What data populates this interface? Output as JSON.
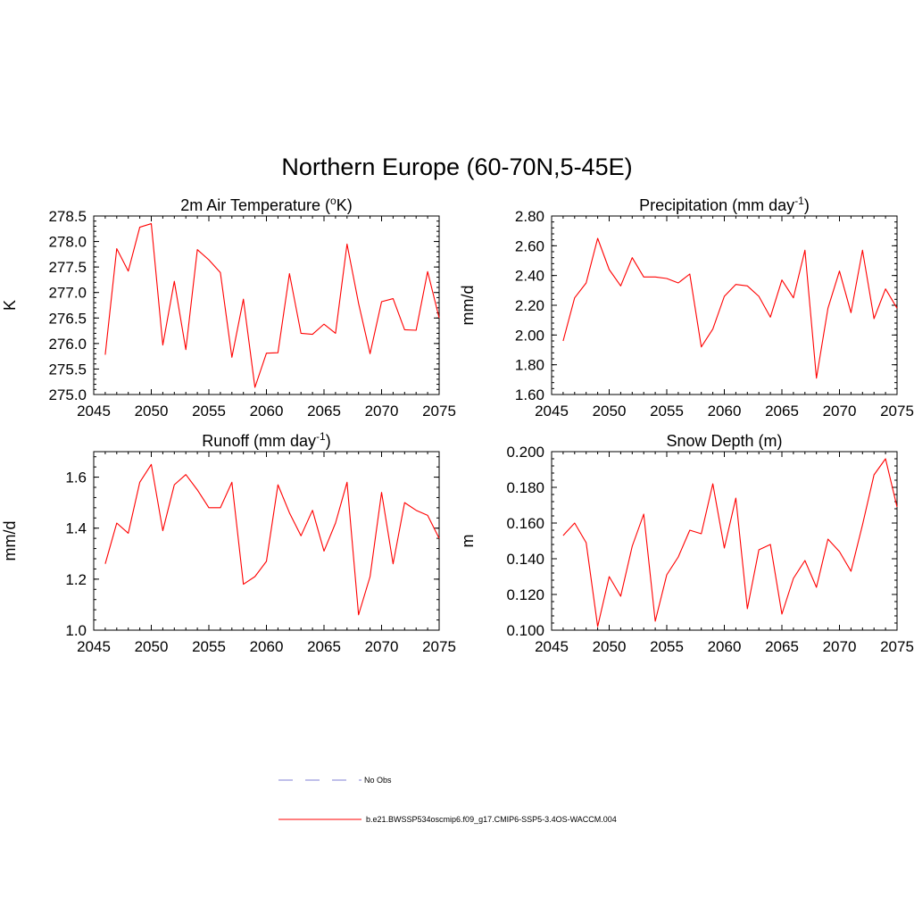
{
  "figure_title": "Northern Europe (60-70N,5-45E)",
  "legend": {
    "obs_label": "No Obs",
    "model_label": "b.e21.BWSSP534oscmip6.f09_g17.CMIP6-SSP5-3.4OS-WACCM.004",
    "obs_color": "#9999dd",
    "model_color": "#ff0000"
  },
  "chart_data": [
    {
      "type": "line",
      "title": "2m Air Temperature (",
      "title_sup": "o",
      "title_suffix": "K)",
      "ylabel": "K",
      "xlim": [
        2045,
        2075
      ],
      "ylim": [
        275.0,
        278.5
      ],
      "xticks": [
        2045,
        2050,
        2055,
        2060,
        2065,
        2070,
        2075
      ],
      "yticks": [
        "275.0",
        "275.5",
        "276.0",
        "276.5",
        "277.0",
        "277.5",
        "278.0",
        "278.5"
      ],
      "x": [
        2046,
        2047,
        2048,
        2049,
        2050,
        2051,
        2052,
        2053,
        2054,
        2055,
        2056,
        2057,
        2058,
        2059,
        2060,
        2061,
        2062,
        2063,
        2064,
        2065,
        2066,
        2067,
        2068,
        2069,
        2070,
        2071,
        2072,
        2073,
        2074,
        2075
      ],
      "series": [
        {
          "values": [
            275.78,
            277.86,
            277.42,
            278.28,
            278.35,
            275.97,
            277.22,
            275.88,
            277.84,
            277.64,
            277.39,
            275.73,
            276.87,
            275.14,
            275.81,
            275.82,
            277.37,
            276.2,
            276.18,
            276.38,
            276.2,
            277.95,
            276.79,
            275.8,
            276.82,
            276.88,
            276.27,
            276.26,
            277.41,
            276.5
          ],
          "color": "#ff0000"
        }
      ]
    },
    {
      "type": "line",
      "title": "Precipitation (mm day",
      "title_sup": "-1",
      "title_suffix": ")",
      "ylabel": "mm/d",
      "xlim": [
        2045,
        2075
      ],
      "ylim": [
        1.6,
        2.8
      ],
      "xticks": [
        2045,
        2050,
        2055,
        2060,
        2065,
        2070,
        2075
      ],
      "yticks": [
        "1.60",
        "1.80",
        "2.00",
        "2.20",
        "2.40",
        "2.60",
        "2.80"
      ],
      "x": [
        2046,
        2047,
        2048,
        2049,
        2050,
        2051,
        2052,
        2053,
        2054,
        2055,
        2056,
        2057,
        2058,
        2059,
        2060,
        2061,
        2062,
        2063,
        2064,
        2065,
        2066,
        2067,
        2068,
        2069,
        2070,
        2071,
        2072,
        2073,
        2074,
        2075
      ],
      "series": [
        {
          "values": [
            1.96,
            2.25,
            2.35,
            2.65,
            2.44,
            2.33,
            2.52,
            2.39,
            2.39,
            2.38,
            2.35,
            2.41,
            1.92,
            2.04,
            2.26,
            2.34,
            2.33,
            2.26,
            2.12,
            2.37,
            2.25,
            2.57,
            1.71,
            2.18,
            2.43,
            2.15,
            2.57,
            2.11,
            2.31,
            2.18
          ],
          "color": "#ff0000"
        }
      ]
    },
    {
      "type": "line",
      "title": "Runoff (mm day",
      "title_sup": "-1",
      "title_suffix": ")",
      "ylabel": "mm/d",
      "xlim": [
        2045,
        2075
      ],
      "ylim": [
        1.0,
        1.7
      ],
      "xticks": [
        2045,
        2050,
        2055,
        2060,
        2065,
        2070,
        2075
      ],
      "yticks": [
        "1.0",
        "1.2",
        "1.4",
        "1.6"
      ],
      "x": [
        2046,
        2047,
        2048,
        2049,
        2050,
        2051,
        2052,
        2053,
        2054,
        2055,
        2056,
        2057,
        2058,
        2059,
        2060,
        2061,
        2062,
        2063,
        2064,
        2065,
        2066,
        2067,
        2068,
        2069,
        2070,
        2071,
        2072,
        2073,
        2074,
        2075
      ],
      "series": [
        {
          "values": [
            1.26,
            1.42,
            1.38,
            1.58,
            1.65,
            1.39,
            1.57,
            1.61,
            1.55,
            1.48,
            1.48,
            1.58,
            1.18,
            1.21,
            1.27,
            1.57,
            1.46,
            1.37,
            1.47,
            1.31,
            1.42,
            1.58,
            1.06,
            1.21,
            1.54,
            1.26,
            1.5,
            1.47,
            1.45,
            1.36
          ],
          "color": "#ff0000"
        }
      ]
    },
    {
      "type": "line",
      "title": "Snow Depth (m)",
      "title_sup": "",
      "title_suffix": "",
      "ylabel": "m",
      "xlim": [
        2045,
        2075
      ],
      "ylim": [
        0.1,
        0.2
      ],
      "xticks": [
        2045,
        2050,
        2055,
        2060,
        2065,
        2070,
        2075
      ],
      "yticks": [
        "0.100",
        "0.120",
        "0.140",
        "0.160",
        "0.180",
        "0.200"
      ],
      "x": [
        2046,
        2047,
        2048,
        2049,
        2050,
        2051,
        2052,
        2053,
        2054,
        2055,
        2056,
        2057,
        2058,
        2059,
        2060,
        2061,
        2062,
        2063,
        2064,
        2065,
        2066,
        2067,
        2068,
        2069,
        2070,
        2071,
        2072,
        2073,
        2074,
        2075
      ],
      "series": [
        {
          "values": [
            0.153,
            0.16,
            0.149,
            0.102,
            0.13,
            0.119,
            0.147,
            0.165,
            0.105,
            0.131,
            0.141,
            0.156,
            0.154,
            0.182,
            0.146,
            0.174,
            0.112,
            0.145,
            0.148,
            0.109,
            0.129,
            0.139,
            0.124,
            0.151,
            0.144,
            0.133,
            0.159,
            0.187,
            0.196,
            0.169
          ],
          "color": "#ff0000"
        }
      ]
    }
  ]
}
